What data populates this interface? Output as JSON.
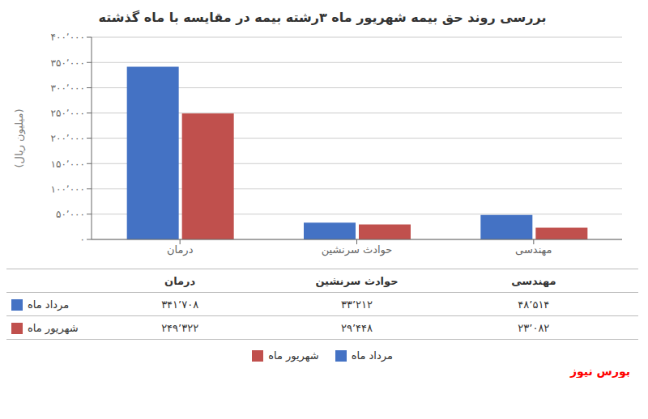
{
  "chart_data": {
    "type": "bar",
    "title": "بررسی روند حق بیمه شهریور ماه ۳رشته بیمه در مقایسه با ماه گذشته",
    "categories": [
      "درمان",
      "حوادث سرنشین",
      "مهندسی"
    ],
    "series": [
      {
        "name": "مرداد ماه",
        "color": "#4472c4",
        "values": [
          341708,
          33212,
          48514
        ],
        "value_labels": [
          "۳۴۱٬۷۰۸",
          "۳۳٬۲۱۲",
          "۴۸٬۵۱۴"
        ]
      },
      {
        "name": "شهریور ماه",
        "color": "#c0504d",
        "values": [
          249322,
          29448,
          23082
        ],
        "value_labels": [
          "۲۴۹٬۳۲۲",
          "۲۹٬۴۴۸",
          "۲۳٬۰۸۲"
        ]
      }
    ],
    "ylabel": "(میلیون ریال)",
    "ylim": [
      0,
      400000
    ],
    "yticks": [
      {
        "value": 0,
        "label": "۰"
      },
      {
        "value": 50000,
        "label": "۵۰٬۰۰۰"
      },
      {
        "value": 100000,
        "label": "۱۰۰٬۰۰۰"
      },
      {
        "value": 150000,
        "label": "۱۵۰٬۰۰۰"
      },
      {
        "value": 200000,
        "label": "۲۰۰٬۰۰۰"
      },
      {
        "value": 250000,
        "label": "۲۵۰٬۰۰۰"
      },
      {
        "value": 300000,
        "label": "۳۰۰٬۰۰۰"
      },
      {
        "value": 350000,
        "label": "۳۵۰٬۰۰۰"
      },
      {
        "value": 400000,
        "label": "۴۰۰٬۰۰۰"
      }
    ],
    "grid": true,
    "annotations": [
      {
        "text": "بورس نیوز",
        "color": "red"
      }
    ]
  }
}
